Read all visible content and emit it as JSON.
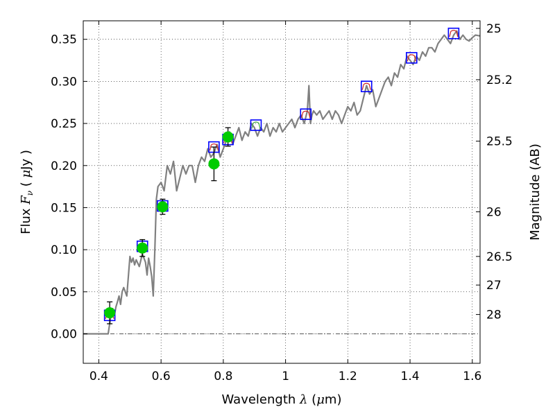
{
  "chart_data": {
    "type": "line",
    "xlabel": {
      "prefix": "Wavelength  ",
      "symbol": "λ",
      "unit_open": " (",
      "unit_mu": "μ",
      "unit_rest": "m)"
    },
    "ylabel": {
      "prefix": "Flux  ",
      "symbol": "F",
      "sub": "ν",
      "unit_open": "  ( ",
      "unit_mu": "μ",
      "unit_rest": "Jy )"
    },
    "y2label": "Magnitude (AB)",
    "xlim": [
      0.35,
      1.625
    ],
    "ylim": [
      -0.035,
      0.372
    ],
    "x_ticks": [
      0.4,
      0.6,
      0.8,
      1.0,
      1.2,
      1.4,
      1.6
    ],
    "x_tick_labels": [
      "0.4",
      "0.6",
      "0.8",
      "1",
      "1.2",
      "1.4",
      "1.6"
    ],
    "y_ticks": [
      0.0,
      0.05,
      0.1,
      0.15,
      0.2,
      0.25,
      0.3,
      0.35
    ],
    "y_tick_labels": [
      "0.00",
      "0.05",
      "0.10",
      "0.15",
      "0.20",
      "0.25",
      "0.30",
      "0.35"
    ],
    "y2_ticks": [
      {
        "label": "25",
        "flux": 0.363
      },
      {
        "label": "25.2",
        "flux": 0.302
      },
      {
        "label": "25.5",
        "flux": 0.229
      },
      {
        "label": "26",
        "flux": 0.145
      },
      {
        "label": "26.5",
        "flux": 0.092
      },
      {
        "label": "27",
        "flux": 0.058
      },
      {
        "label": "28",
        "flux": 0.023
      }
    ],
    "grid": true,
    "colors": {
      "model": "#808080",
      "obs_point": "#00cc00",
      "model_box": "#0000ff",
      "filter_curve": "#cc2222",
      "filter_curve_alt": "#44aa44",
      "errorbar": "#000000",
      "zero_line": "#555555"
    },
    "series": [
      {
        "kind": "model_spectrum",
        "x": [
          0.35,
          0.38,
          0.41,
          0.43,
          0.435,
          0.44,
          0.445,
          0.45,
          0.455,
          0.46,
          0.465,
          0.47,
          0.475,
          0.48,
          0.49,
          0.5,
          0.505,
          0.51,
          0.515,
          0.52,
          0.53,
          0.54,
          0.55,
          0.555,
          0.56,
          0.565,
          0.57,
          0.575,
          0.58,
          0.585,
          0.59,
          0.6,
          0.61,
          0.62,
          0.63,
          0.64,
          0.65,
          0.66,
          0.67,
          0.68,
          0.69,
          0.7,
          0.71,
          0.72,
          0.73,
          0.74,
          0.75,
          0.76,
          0.77,
          0.78,
          0.79,
          0.8,
          0.81,
          0.82,
          0.83,
          0.84,
          0.85,
          0.86,
          0.87,
          0.88,
          0.89,
          0.9,
          0.91,
          0.92,
          0.93,
          0.94,
          0.95,
          0.96,
          0.97,
          0.98,
          0.99,
          1.0,
          1.01,
          1.02,
          1.03,
          1.04,
          1.05,
          1.06,
          1.07,
          1.075,
          1.08,
          1.085,
          1.09,
          1.1,
          1.11,
          1.12,
          1.13,
          1.14,
          1.15,
          1.16,
          1.17,
          1.18,
          1.19,
          1.2,
          1.21,
          1.22,
          1.23,
          1.24,
          1.25,
          1.26,
          1.27,
          1.28,
          1.29,
          1.3,
          1.31,
          1.32,
          1.33,
          1.34,
          1.35,
          1.36,
          1.37,
          1.38,
          1.39,
          1.4,
          1.41,
          1.42,
          1.43,
          1.44,
          1.45,
          1.46,
          1.47,
          1.48,
          1.49,
          1.5,
          1.51,
          1.52,
          1.53,
          1.54,
          1.55,
          1.56,
          1.57,
          1.58,
          1.59,
          1.6,
          1.61,
          1.625
        ],
        "y": [
          0.0,
          0.0,
          0.0,
          0.0,
          0.012,
          0.025,
          0.03,
          0.022,
          0.032,
          0.038,
          0.045,
          0.035,
          0.05,
          0.055,
          0.045,
          0.092,
          0.085,
          0.09,
          0.082,
          0.088,
          0.08,
          0.095,
          0.085,
          0.07,
          0.09,
          0.08,
          0.068,
          0.045,
          0.1,
          0.16,
          0.175,
          0.18,
          0.17,
          0.2,
          0.19,
          0.205,
          0.17,
          0.185,
          0.2,
          0.19,
          0.2,
          0.2,
          0.18,
          0.2,
          0.21,
          0.205,
          0.22,
          0.21,
          0.215,
          0.225,
          0.21,
          0.22,
          0.23,
          0.24,
          0.225,
          0.235,
          0.245,
          0.23,
          0.24,
          0.235,
          0.25,
          0.245,
          0.235,
          0.245,
          0.24,
          0.25,
          0.235,
          0.245,
          0.24,
          0.25,
          0.24,
          0.245,
          0.25,
          0.255,
          0.245,
          0.255,
          0.26,
          0.25,
          0.265,
          0.295,
          0.25,
          0.26,
          0.265,
          0.26,
          0.265,
          0.255,
          0.26,
          0.265,
          0.255,
          0.265,
          0.26,
          0.25,
          0.26,
          0.27,
          0.265,
          0.275,
          0.26,
          0.265,
          0.28,
          0.295,
          0.285,
          0.29,
          0.27,
          0.28,
          0.29,
          0.3,
          0.305,
          0.295,
          0.31,
          0.305,
          0.32,
          0.315,
          0.33,
          0.325,
          0.32,
          0.33,
          0.325,
          0.335,
          0.33,
          0.34,
          0.34,
          0.335,
          0.345,
          0.35,
          0.355,
          0.35,
          0.345,
          0.355,
          0.36,
          0.35,
          0.355,
          0.35,
          0.348,
          0.352,
          0.355,
          0.354
        ]
      },
      {
        "kind": "observed_points",
        "x": [
          0.435,
          0.54,
          0.605,
          0.77,
          0.815
        ],
        "y": [
          0.025,
          0.102,
          0.151,
          0.202,
          0.234
        ],
        "yerr": [
          0.013,
          0.01,
          0.009,
          0.02,
          0.011
        ]
      },
      {
        "kind": "model_photometry_boxes",
        "x": [
          0.435,
          0.54,
          0.605,
          0.77,
          0.815,
          0.905,
          1.065,
          1.26,
          1.405,
          1.54
        ],
        "y": [
          0.022,
          0.104,
          0.152,
          0.222,
          0.231,
          0.248,
          0.261,
          0.294,
          0.328,
          0.357
        ]
      }
    ]
  }
}
